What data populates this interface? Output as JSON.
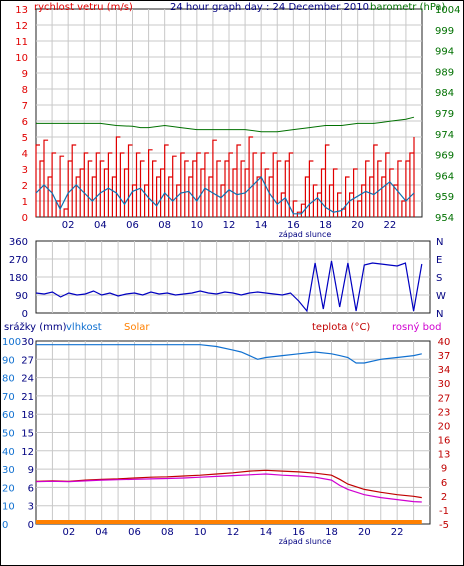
{
  "colors": {
    "wind": "#e00000",
    "gust": "#e00000",
    "pressure": "#007000",
    "wind_avg": "#1070b0",
    "direction": "#0000c0",
    "humidity": "#1070d0",
    "rain": "#0060c0",
    "solar": "#ff8000",
    "temperature": "#c00000",
    "dewpoint": "#d000d0",
    "grid": "#c8c8c8",
    "frame": "#202020",
    "dark_text": "#000080"
  },
  "chart_data": [
    {
      "type": "line",
      "panel": "wind",
      "title": "24 hour graph day : 24 December 2010",
      "left_label": "rychlost vetru (m/s)",
      "right_label": "barometr (hPa)",
      "x_ticks": [
        "02",
        "04",
        "06",
        "08",
        "10",
        "12",
        "14",
        "16",
        "18",
        "20",
        "22"
      ],
      "x_note": "západ slunce",
      "y_left_ticks": [
        "0",
        "1",
        "2",
        "3",
        "4",
        "5",
        "6",
        "7",
        "8",
        "9",
        "10",
        "11",
        "12",
        "13"
      ],
      "y_right_ticks": [
        "954",
        "959",
        "964",
        "969",
        "974",
        "979",
        "984",
        "989",
        "994",
        "999",
        "1004"
      ],
      "ylim_left": [
        0,
        13
      ],
      "ylim_right": [
        954,
        1004
      ],
      "series": [
        {
          "key": "pressure",
          "x": [
            0,
            0.5,
            1,
            2,
            3,
            4,
            5,
            6,
            6.5,
            7,
            8,
            9,
            10,
            11,
            12,
            13,
            14,
            15,
            16,
            17,
            18,
            19,
            20,
            21,
            22,
            23,
            23.5
          ],
          "y": [
            976.5,
            976.5,
            976.5,
            976.5,
            976.5,
            976.5,
            976,
            975.8,
            975.5,
            975.5,
            976,
            975.5,
            975,
            975,
            975,
            975,
            974.5,
            974.5,
            975,
            975.5,
            976,
            976,
            976.5,
            976.5,
            977,
            977.5,
            978
          ]
        },
        {
          "key": "gust",
          "x": [
            0,
            0.25,
            0.5,
            0.75,
            1,
            1.25,
            1.5,
            1.75,
            2,
            2.25,
            2.5,
            2.75,
            3,
            3.25,
            3.5,
            3.75,
            4,
            4.25,
            4.5,
            4.75,
            5,
            5.25,
            5.5,
            5.75,
            6,
            6.25,
            6.5,
            6.75,
            7,
            7.25,
            7.5,
            7.75,
            8,
            8.25,
            8.5,
            8.75,
            9,
            9.25,
            9.5,
            9.75,
            10,
            10.25,
            10.5,
            10.75,
            11,
            11.25,
            11.5,
            11.75,
            12,
            12.25,
            12.5,
            12.75,
            13,
            13.25,
            13.5,
            13.75,
            14,
            14.25,
            14.5,
            14.75,
            15,
            15.25,
            15.5,
            15.75,
            16,
            16.25,
            16.5,
            16.75,
            17,
            17.25,
            17.5,
            17.75,
            18,
            18.25,
            18.5,
            18.75,
            19,
            19.25,
            19.5,
            19.75,
            20,
            20.25,
            20.5,
            20.75,
            21,
            21.25,
            21.5,
            21.75,
            22,
            22.25,
            22.5,
            22.75,
            23,
            23.25,
            23.5
          ],
          "y": [
            4.5,
            3.5,
            4.8,
            2.5,
            4.0,
            1.0,
            3.8,
            0.5,
            3.5,
            4.5,
            2.5,
            3.0,
            4.0,
            3.5,
            2.5,
            4.0,
            3.5,
            3.0,
            4.0,
            2.5,
            5.0,
            4.0,
            3.0,
            4.5,
            2.0,
            4.0,
            3.5,
            2.0,
            4.2,
            3.5,
            2.5,
            3.0,
            4.5,
            2.5,
            3.8,
            2.0,
            4.0,
            3.5,
            2.5,
            3.5,
            4.0,
            3.0,
            4.0,
            2.5,
            4.8,
            3.5,
            2.0,
            3.5,
            4.0,
            3.0,
            4.5,
            3.5,
            3.0,
            5.0,
            4.0,
            2.5,
            4.0,
            3.0,
            2.5,
            4.0,
            3.5,
            1.5,
            3.5,
            4.0,
            1.0,
            0.3,
            0.8,
            2.5,
            3.5,
            2.0,
            1.5,
            3.0,
            4.5,
            2.0,
            3.0,
            1.5,
            0.5,
            2.5,
            1.5,
            3.0,
            1.0,
            2.0,
            3.5,
            2.5,
            4.5,
            3.5,
            2.5,
            4.0,
            3.0,
            2.0,
            3.5,
            1.0,
            3.5,
            4.0,
            5.0
          ]
        },
        {
          "key": "wind_avg",
          "x": [
            0,
            0.5,
            1,
            1.5,
            2,
            2.5,
            3,
            3.5,
            4,
            4.5,
            5,
            5.5,
            6,
            6.5,
            7,
            7.5,
            8,
            8.5,
            9,
            9.5,
            10,
            10.5,
            11,
            11.5,
            12,
            12.5,
            13,
            13.5,
            14,
            14.5,
            15,
            15.5,
            16,
            16.5,
            17,
            17.5,
            18,
            18.5,
            19,
            19.5,
            20,
            20.5,
            21,
            21.5,
            22,
            22.5,
            23,
            23.5
          ],
          "y": [
            1.5,
            2.0,
            1.5,
            0.5,
            1.5,
            2.0,
            1.5,
            1.0,
            1.5,
            1.8,
            1.5,
            0.8,
            1.6,
            1.8,
            1.2,
            0.7,
            1.5,
            1.0,
            1.5,
            1.6,
            1.0,
            1.8,
            1.5,
            1.2,
            1.7,
            1.4,
            1.5,
            2.0,
            2.5,
            1.5,
            0.8,
            1.2,
            0.2,
            0.2,
            0.8,
            1.2,
            0.6,
            0.3,
            0.4,
            1.0,
            1.3,
            1.6,
            1.4,
            1.8,
            2.2,
            1.6,
            1.0,
            1.5
          ]
        }
      ]
    },
    {
      "type": "line",
      "panel": "direction",
      "x_note": "",
      "y_left_ticks": [
        "0",
        "90",
        "180",
        "270",
        "360"
      ],
      "y_right_ticks": [
        "N",
        "E",
        "S",
        "W",
        "N"
      ],
      "ylim_left": [
        0,
        360
      ],
      "series": [
        {
          "key": "direction",
          "x": [
            0,
            0.5,
            1,
            1.5,
            2,
            2.5,
            3,
            3.5,
            4,
            4.5,
            5,
            5.5,
            6,
            6.5,
            7,
            7.5,
            8,
            8.5,
            9,
            9.5,
            10,
            10.5,
            11,
            11.5,
            12,
            12.5,
            13,
            13.5,
            14,
            14.5,
            15,
            15.5,
            16,
            16.5,
            17,
            17.5,
            18,
            18.5,
            19,
            19.5,
            20,
            20.5,
            21,
            21.5,
            22,
            22.5,
            23,
            23.5
          ],
          "y": [
            100,
            95,
            105,
            80,
            100,
            90,
            95,
            110,
            90,
            100,
            85,
            95,
            100,
            90,
            105,
            95,
            100,
            90,
            95,
            100,
            110,
            100,
            95,
            105,
            100,
            90,
            100,
            105,
            100,
            95,
            90,
            100,
            60,
            10,
            250,
            20,
            260,
            30,
            250,
            10,
            240,
            250,
            245,
            240,
            235,
            250,
            10,
            245
          ]
        }
      ]
    },
    {
      "type": "line",
      "panel": "climate",
      "legend": [
        "srážky (mm)",
        "vlhkost",
        "Solar",
        "teplota (°C)",
        "rosný bod"
      ],
      "x_ticks": [
        "02",
        "04",
        "06",
        "08",
        "10",
        "12",
        "14",
        "16",
        "18",
        "20",
        "22"
      ],
      "x_note": "západ slunce",
      "y_left_ticks_rain": [
        "0",
        "3",
        "6",
        "9",
        "12",
        "15",
        "18",
        "21",
        "24",
        "27",
        "30"
      ],
      "y_left_ticks_hum": [
        "0",
        "10",
        "20",
        "30",
        "40",
        "50",
        "60",
        "70",
        "80",
        "90",
        "100"
      ],
      "y_right_ticks": [
        "-5",
        "-1",
        "2",
        "6",
        "9",
        "13",
        "16",
        "20",
        "23",
        "27",
        "30",
        "34",
        "37",
        "40"
      ],
      "ylim_rain": [
        0,
        30
      ],
      "ylim_humidity": [
        0,
        100
      ],
      "ylim_temperature": [
        -5,
        40
      ],
      "series": [
        {
          "key": "humidity",
          "x": [
            0,
            2,
            4,
            6,
            8,
            9,
            10,
            11,
            12,
            12.5,
            13,
            13.5,
            14,
            15,
            16,
            17,
            18,
            18.5,
            19,
            19.5,
            20,
            21,
            22,
            23,
            23.5
          ],
          "y": [
            98,
            98,
            98,
            98,
            98,
            98,
            98,
            97,
            95,
            94,
            92,
            90,
            91,
            92,
            93,
            94,
            93,
            92,
            91,
            88,
            88,
            90,
            91,
            92,
            93
          ]
        },
        {
          "key": "temperature",
          "x": [
            0,
            1,
            2,
            3,
            4,
            5,
            6,
            7,
            8,
            9,
            10,
            11,
            12,
            13,
            14,
            15,
            16,
            17,
            18,
            18.5,
            19,
            20,
            21,
            22,
            23,
            23.5
          ],
          "y": [
            5.5,
            5.6,
            5.5,
            5.8,
            6.0,
            6.1,
            6.3,
            6.5,
            6.6,
            6.8,
            7.0,
            7.3,
            7.6,
            8.0,
            8.2,
            8.0,
            7.8,
            7.5,
            7.0,
            6.0,
            4.8,
            3.5,
            2.8,
            2.2,
            1.8,
            1.5
          ]
        },
        {
          "key": "dewpoint",
          "x": [
            0,
            1,
            2,
            3,
            4,
            5,
            6,
            7,
            8,
            9,
            10,
            11,
            12,
            13,
            14,
            15,
            16,
            17,
            18,
            18.5,
            19,
            20,
            21,
            22,
            23,
            23.5
          ],
          "y": [
            5.4,
            5.5,
            5.4,
            5.6,
            5.8,
            5.9,
            6.0,
            6.1,
            6.2,
            6.3,
            6.5,
            6.7,
            6.9,
            7.1,
            7.3,
            7.0,
            6.8,
            6.5,
            5.8,
            4.5,
            3.5,
            2.2,
            1.5,
            1.0,
            0.5,
            0.4
          ]
        },
        {
          "key": "solar",
          "x": [
            0,
            23.5
          ],
          "y": [
            0,
            0
          ]
        }
      ]
    }
  ]
}
